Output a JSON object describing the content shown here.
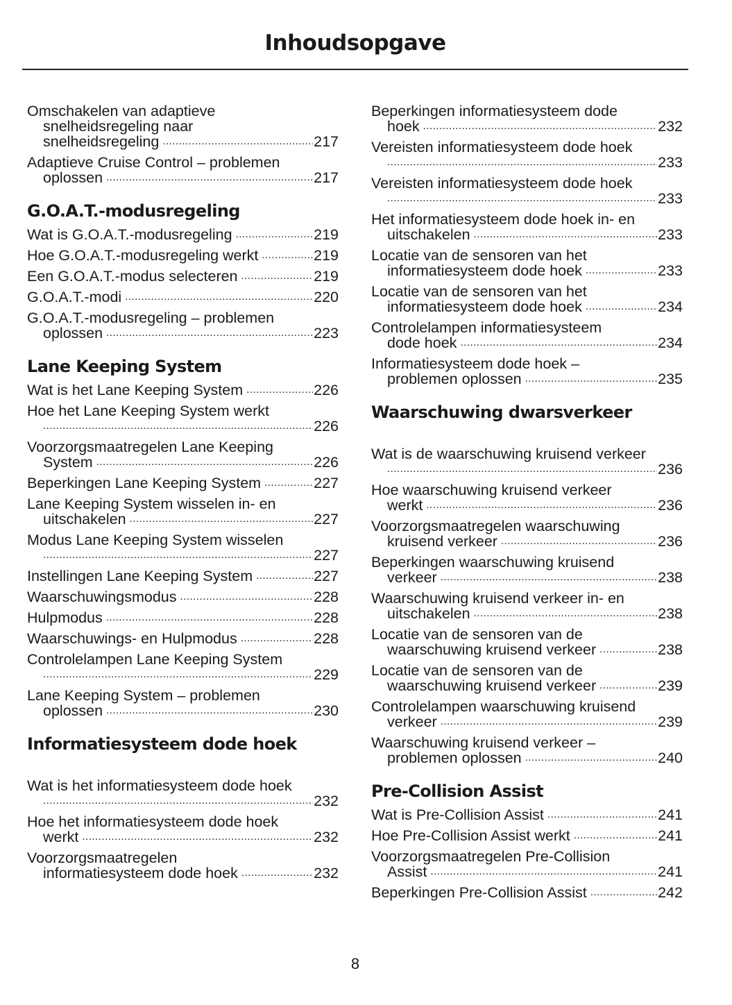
{
  "title": "Inhoudsopgave",
  "page_number": "8",
  "columns": [
    {
      "items": [
        {
          "type": "entry",
          "lines": [
            "Omschakelen van adaptieve",
            "snelheidsregeling naar",
            "snelheidsregeling"
          ],
          "page": "217"
        },
        {
          "type": "entry",
          "lines": [
            "Adaptieve Cruise Control – problemen",
            "oplossen"
          ],
          "page": "217"
        },
        {
          "type": "heading",
          "text": "G.O.A.T.-modusregeling"
        },
        {
          "type": "entry",
          "lines": [
            "Wat is G.O.A.T.-modusregeling"
          ],
          "page": "219"
        },
        {
          "type": "entry",
          "lines": [
            "Hoe G.O.A.T.-modusregeling werkt"
          ],
          "page": "219"
        },
        {
          "type": "entry",
          "lines": [
            "Een G.O.A.T.-modus selecteren"
          ],
          "page": "219"
        },
        {
          "type": "entry",
          "lines": [
            "G.O.A.T.-modi"
          ],
          "page": "220"
        },
        {
          "type": "entry",
          "lines": [
            "G.O.A.T.-modusregeling – problemen",
            "oplossen"
          ],
          "page": "223"
        },
        {
          "type": "heading",
          "text": "Lane Keeping System"
        },
        {
          "type": "entry",
          "lines": [
            "Wat is het Lane Keeping System"
          ],
          "page": "226"
        },
        {
          "type": "entry",
          "lines": [
            "Hoe het Lane Keeping System werkt",
            ""
          ],
          "page": "226"
        },
        {
          "type": "entry",
          "lines": [
            "Voorzorgsmaatregelen Lane Keeping",
            "System"
          ],
          "page": "226"
        },
        {
          "type": "entry",
          "lines": [
            "Beperkingen Lane Keeping System"
          ],
          "page": "227"
        },
        {
          "type": "entry",
          "lines": [
            "Lane Keeping System wisselen in- en",
            "uitschakelen"
          ],
          "page": "227"
        },
        {
          "type": "entry",
          "lines": [
            "Modus Lane Keeping System wisselen",
            ""
          ],
          "page": "227"
        },
        {
          "type": "entry",
          "lines": [
            "Instellingen Lane Keeping System"
          ],
          "page": "227"
        },
        {
          "type": "entry",
          "lines": [
            "Waarschuwingsmodus"
          ],
          "page": "228"
        },
        {
          "type": "entry",
          "lines": [
            "Hulpmodus"
          ],
          "page": "228"
        },
        {
          "type": "entry",
          "lines": [
            "Waarschuwings- en Hulpmodus"
          ],
          "page": "228"
        },
        {
          "type": "entry",
          "lines": [
            "Controlelampen Lane Keeping System",
            ""
          ],
          "page": "229"
        },
        {
          "type": "entry",
          "lines": [
            "Lane Keeping System – problemen",
            "oplossen"
          ],
          "page": "230"
        },
        {
          "type": "heading",
          "text": "Informatiesysteem dode hoek",
          "wide": true
        },
        {
          "type": "entry",
          "lines": [
            "Wat is het informatiesysteem dode hoek",
            ""
          ],
          "page": "232"
        },
        {
          "type": "entry",
          "lines": [
            "Hoe het informatiesysteem dode hoek",
            "werkt"
          ],
          "page": "232"
        },
        {
          "type": "entry",
          "lines": [
            "Voorzorgsmaatregelen",
            "informatiesysteem dode hoek"
          ],
          "page": "232"
        }
      ]
    },
    {
      "items": [
        {
          "type": "entry",
          "lines": [
            "Beperkingen informatiesysteem dode",
            "hoek"
          ],
          "page": "232"
        },
        {
          "type": "entry",
          "lines": [
            "Vereisten informatiesysteem dode hoek",
            ""
          ],
          "page": "233"
        },
        {
          "type": "entry",
          "lines": [
            "Vereisten informatiesysteem dode hoek",
            ""
          ],
          "page": "233"
        },
        {
          "type": "entry",
          "lines": [
            "Het informatiesysteem dode hoek in- en",
            "uitschakelen"
          ],
          "page": "233"
        },
        {
          "type": "entry",
          "lines": [
            "Locatie van de sensoren van het",
            "informatiesysteem dode hoek"
          ],
          "page": "233"
        },
        {
          "type": "entry",
          "lines": [
            "Locatie van de sensoren van het",
            "informatiesysteem dode hoek"
          ],
          "page": "234"
        },
        {
          "type": "entry",
          "lines": [
            "Controlelampen informatiesysteem",
            "dode hoek"
          ],
          "page": "234"
        },
        {
          "type": "entry",
          "lines": [
            "Informatiesysteem dode hoek –",
            "problemen oplossen"
          ],
          "page": "235"
        },
        {
          "type": "heading",
          "text": "Waarschuwing dwarsverkeer",
          "wide": true
        },
        {
          "type": "entry",
          "lines": [
            "Wat is de waarschuwing kruisend verkeer",
            ""
          ],
          "page": "236"
        },
        {
          "type": "entry",
          "lines": [
            "Hoe waarschuwing kruisend verkeer",
            "werkt"
          ],
          "page": "236"
        },
        {
          "type": "entry",
          "lines": [
            "Voorzorgsmaatregelen waarschuwing",
            "kruisend verkeer"
          ],
          "page": "236"
        },
        {
          "type": "entry",
          "lines": [
            "Beperkingen waarschuwing kruisend",
            "verkeer"
          ],
          "page": "238"
        },
        {
          "type": "entry",
          "lines": [
            "Waarschuwing kruisend verkeer in- en",
            "uitschakelen"
          ],
          "page": "238"
        },
        {
          "type": "entry",
          "lines": [
            "Locatie van de sensoren van de",
            "waarschuwing kruisend verkeer"
          ],
          "page": "238"
        },
        {
          "type": "entry",
          "lines": [
            "Locatie van de sensoren van de",
            "waarschuwing kruisend verkeer"
          ],
          "page": "239"
        },
        {
          "type": "entry",
          "lines": [
            "Controlelampen waarschuwing kruisend",
            "verkeer"
          ],
          "page": "239"
        },
        {
          "type": "entry",
          "lines": [
            "Waarschuwing kruisend verkeer –",
            "problemen oplossen"
          ],
          "page": "240"
        },
        {
          "type": "heading",
          "text": "Pre-Collision Assist"
        },
        {
          "type": "entry",
          "lines": [
            "Wat is Pre-Collision Assist"
          ],
          "page": "241"
        },
        {
          "type": "entry",
          "lines": [
            "Hoe Pre-Collision Assist werkt"
          ],
          "page": "241"
        },
        {
          "type": "entry",
          "lines": [
            "Voorzorgsmaatregelen Pre-Collision",
            "Assist"
          ],
          "page": "241"
        },
        {
          "type": "entry",
          "lines": [
            "Beperkingen Pre-Collision Assist"
          ],
          "page": "242"
        }
      ]
    }
  ]
}
